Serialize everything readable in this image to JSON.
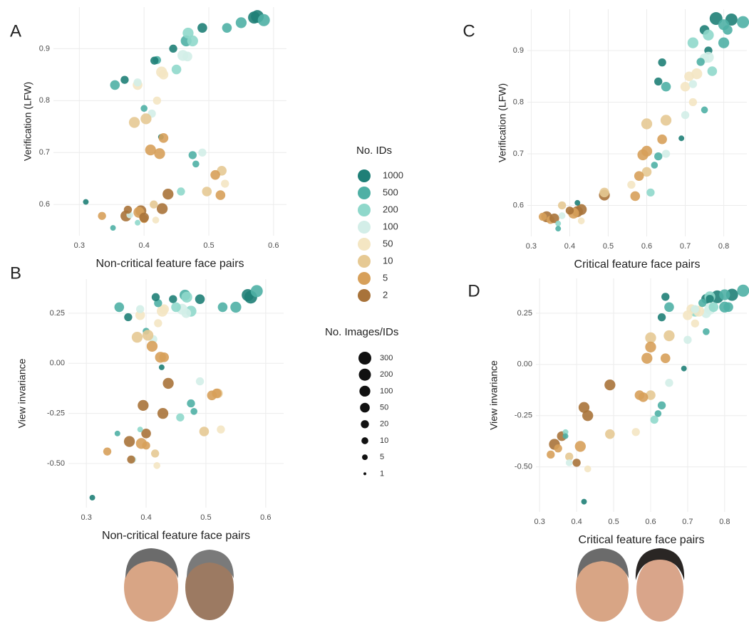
{
  "chart_data": [
    {
      "type": "scatter",
      "label": "A",
      "xlabel": "Non-critical feature face pairs",
      "ylabel": "Verification (LFW)",
      "xlim": [
        0.26,
        0.62
      ],
      "ylim": [
        0.54,
        0.98
      ],
      "xticks": [
        0.3,
        0.4,
        0.5,
        0.6
      ],
      "yticks": [
        0.6,
        0.7,
        0.8,
        0.9
      ],
      "grid": true,
      "x": [
        0.575,
        0.57,
        0.585,
        0.55,
        0.528,
        0.49,
        0.465,
        0.468,
        0.475,
        0.445,
        0.46,
        0.467,
        0.45,
        0.427,
        0.43,
        0.42,
        0.416,
        0.355,
        0.37,
        0.39,
        0.39,
        0.42,
        0.4,
        0.412,
        0.385,
        0.403,
        0.426,
        0.43,
        0.41,
        0.424,
        0.475,
        0.49,
        0.48,
        0.52,
        0.51,
        0.525,
        0.437,
        0.497,
        0.518,
        0.457,
        0.428,
        0.395,
        0.392,
        0.372,
        0.415,
        0.4,
        0.31,
        0.335,
        0.4,
        0.39,
        0.352,
        0.378,
        0.418,
        0.375
      ],
      "values": [
        0.962,
        0.96,
        0.955,
        0.95,
        0.94,
        0.94,
        0.915,
        0.93,
        0.915,
        0.9,
        0.887,
        0.885,
        0.86,
        0.855,
        0.85,
        0.878,
        0.877,
        0.83,
        0.84,
        0.83,
        0.835,
        0.8,
        0.785,
        0.775,
        0.758,
        0.765,
        0.73,
        0.728,
        0.705,
        0.698,
        0.695,
        0.7,
        0.678,
        0.665,
        0.657,
        0.64,
        0.62,
        0.625,
        0.618,
        0.625,
        0.592,
        0.588,
        0.585,
        0.578,
        0.6,
        0.572,
        0.605,
        0.578,
        0.575,
        0.565,
        0.555,
        0.58,
        0.57,
        0.59
      ],
      "sizes": [
        300,
        200,
        200,
        100,
        50,
        50,
        100,
        100,
        100,
        20,
        100,
        50,
        50,
        100,
        50,
        20,
        20,
        50,
        20,
        50,
        20,
        20,
        10,
        20,
        100,
        100,
        5,
        50,
        100,
        100,
        20,
        20,
        10,
        50,
        50,
        20,
        100,
        50,
        50,
        20,
        100,
        100,
        100,
        100,
        20,
        20,
        5,
        20,
        50,
        5,
        5,
        10,
        10,
        20
      ],
      "ids": [
        1000,
        1000,
        500,
        500,
        500,
        1000,
        500,
        200,
        200,
        1000,
        100,
        100,
        200,
        50,
        50,
        500,
        1000,
        500,
        1000,
        50,
        100,
        50,
        500,
        100,
        10,
        10,
        1000,
        5,
        5,
        5,
        500,
        100,
        500,
        10,
        5,
        50,
        2,
        10,
        5,
        200,
        2,
        2,
        5,
        2,
        10,
        5,
        1000,
        5,
        2,
        200,
        500,
        100,
        50,
        2
      ]
    },
    {
      "type": "scatter",
      "label": "B",
      "xlabel": "Non-critical feature face pairs",
      "ylabel": "View invariance",
      "xlim": [
        0.27,
        0.63
      ],
      "ylim": [
        -0.72,
        0.42
      ],
      "xticks": [
        0.3,
        0.4,
        0.5,
        0.6
      ],
      "yticks": [
        0.25,
        {
          "value": 0,
          "label": "0.00"
        },
        -0.25,
        {
          "value": -0.5,
          "label": "-0.50"
        }
      ],
      "grid": true,
      "x": [
        0.575,
        0.57,
        0.585,
        0.55,
        0.528,
        0.49,
        0.465,
        0.468,
        0.475,
        0.445,
        0.46,
        0.467,
        0.45,
        0.427,
        0.43,
        0.42,
        0.416,
        0.355,
        0.37,
        0.39,
        0.39,
        0.42,
        0.4,
        0.412,
        0.385,
        0.403,
        0.426,
        0.43,
        0.41,
        0.424,
        0.475,
        0.49,
        0.48,
        0.52,
        0.51,
        0.525,
        0.437,
        0.497,
        0.518,
        0.457,
        0.428,
        0.395,
        0.392,
        0.372,
        0.415,
        0.4,
        0.31,
        0.335,
        0.4,
        0.39,
        0.352,
        0.378,
        0.418,
        0.375
      ],
      "values": [
        0.33,
        0.34,
        0.36,
        0.28,
        0.28,
        0.32,
        0.34,
        0.33,
        0.26,
        0.32,
        0.27,
        0.25,
        0.28,
        0.26,
        0.27,
        0.3,
        0.33,
        0.28,
        0.23,
        0.24,
        0.27,
        0.2,
        0.16,
        0.12,
        0.13,
        0.14,
        -0.02,
        0.03,
        0.085,
        0.03,
        -0.2,
        -0.09,
        -0.24,
        -0.15,
        -0.16,
        -0.33,
        -0.1,
        -0.34,
        -0.15,
        -0.27,
        -0.25,
        -0.21,
        -0.4,
        -0.39,
        -0.45,
        -0.41,
        -0.67,
        -0.44,
        -0.35,
        -0.33,
        -0.35,
        -0.48,
        -0.51,
        -0.48
      ],
      "sizes": [
        300,
        200,
        200,
        100,
        50,
        50,
        100,
        100,
        100,
        20,
        100,
        50,
        50,
        100,
        50,
        20,
        20,
        50,
        20,
        50,
        20,
        20,
        10,
        20,
        100,
        100,
        5,
        50,
        100,
        100,
        20,
        20,
        10,
        50,
        50,
        20,
        100,
        50,
        50,
        20,
        100,
        100,
        100,
        100,
        20,
        20,
        5,
        20,
        50,
        5,
        5,
        10,
        10,
        20
      ],
      "ids": [
        1000,
        1000,
        500,
        500,
        500,
        1000,
        500,
        200,
        200,
        1000,
        100,
        100,
        200,
        50,
        50,
        500,
        1000,
        500,
        1000,
        50,
        100,
        50,
        500,
        100,
        10,
        10,
        1000,
        5,
        5,
        5,
        500,
        100,
        500,
        10,
        5,
        50,
        2,
        10,
        5,
        200,
        2,
        2,
        5,
        2,
        10,
        5,
        1000,
        5,
        2,
        200,
        500,
        100,
        50,
        2
      ]
    },
    {
      "type": "scatter",
      "label": "C",
      "xlabel": "Critical feature face pairs",
      "ylabel": "Verification (LFW)",
      "xlim": [
        0.29,
        0.86
      ],
      "ylim": [
        0.54,
        0.98
      ],
      "xticks": [
        0.3,
        0.4,
        0.5,
        0.6,
        0.7,
        0.8
      ],
      "yticks": [
        0.6,
        0.7,
        0.8,
        0.9
      ],
      "grid": true,
      "x": [
        0.78,
        0.82,
        0.85,
        0.8,
        0.81,
        0.75,
        0.8,
        0.76,
        0.72,
        0.76,
        0.76,
        0.75,
        0.77,
        0.73,
        0.71,
        0.74,
        0.64,
        0.65,
        0.63,
        0.7,
        0.72,
        0.72,
        0.75,
        0.7,
        0.6,
        0.65,
        0.69,
        0.64,
        0.6,
        0.59,
        0.63,
        0.65,
        0.62,
        0.6,
        0.58,
        0.56,
        0.49,
        0.49,
        0.57,
        0.61,
        0.43,
        0.42,
        0.41,
        0.34,
        0.38,
        0.35,
        0.42,
        0.33,
        0.36,
        0.37,
        0.37,
        0.38,
        0.43,
        0.4
      ],
      "values": [
        0.962,
        0.96,
        0.955,
        0.95,
        0.94,
        0.94,
        0.915,
        0.93,
        0.915,
        0.9,
        0.887,
        0.885,
        0.86,
        0.855,
        0.85,
        0.878,
        0.877,
        0.83,
        0.84,
        0.83,
        0.835,
        0.8,
        0.785,
        0.775,
        0.758,
        0.765,
        0.73,
        0.728,
        0.705,
        0.698,
        0.695,
        0.7,
        0.678,
        0.665,
        0.657,
        0.64,
        0.62,
        0.625,
        0.618,
        0.625,
        0.592,
        0.588,
        0.585,
        0.578,
        0.6,
        0.572,
        0.605,
        0.578,
        0.575,
        0.565,
        0.555,
        0.58,
        0.57,
        0.59
      ],
      "sizes": [
        300,
        200,
        200,
        100,
        50,
        50,
        100,
        100,
        100,
        20,
        100,
        50,
        50,
        100,
        50,
        20,
        20,
        50,
        20,
        50,
        20,
        20,
        10,
        20,
        100,
        100,
        5,
        50,
        100,
        100,
        20,
        20,
        10,
        50,
        50,
        20,
        100,
        50,
        50,
        20,
        100,
        100,
        100,
        100,
        20,
        20,
        5,
        20,
        50,
        5,
        5,
        10,
        10,
        20
      ],
      "ids": [
        1000,
        1000,
        500,
        500,
        500,
        1000,
        500,
        200,
        200,
        1000,
        100,
        100,
        200,
        50,
        50,
        500,
        1000,
        500,
        1000,
        50,
        100,
        50,
        500,
        100,
        10,
        10,
        1000,
        5,
        5,
        5,
        500,
        100,
        500,
        10,
        5,
        50,
        2,
        10,
        5,
        200,
        2,
        2,
        5,
        2,
        10,
        5,
        1000,
        5,
        2,
        200,
        500,
        100,
        50,
        2
      ]
    },
    {
      "type": "scatter",
      "label": "D",
      "xlabel": "Critical feature face pairs",
      "ylabel": "View invariance",
      "xlim": [
        0.29,
        0.86
      ],
      "ylim": [
        -0.72,
        0.42
      ],
      "xticks": [
        0.3,
        0.4,
        0.5,
        0.6,
        0.7,
        0.8
      ],
      "yticks": [
        0.25,
        {
          "value": 0,
          "label": "0.00"
        },
        -0.25,
        {
          "value": -0.5,
          "label": "-0.50"
        }
      ],
      "grid": true,
      "x": [
        0.78,
        0.82,
        0.85,
        0.8,
        0.81,
        0.75,
        0.8,
        0.76,
        0.72,
        0.76,
        0.76,
        0.75,
        0.77,
        0.73,
        0.71,
        0.74,
        0.64,
        0.65,
        0.63,
        0.7,
        0.72,
        0.72,
        0.75,
        0.7,
        0.6,
        0.65,
        0.69,
        0.64,
        0.6,
        0.59,
        0.63,
        0.65,
        0.62,
        0.6,
        0.58,
        0.56,
        0.49,
        0.49,
        0.57,
        0.61,
        0.43,
        0.42,
        0.41,
        0.34,
        0.38,
        0.35,
        0.42,
        0.33,
        0.36,
        0.37,
        0.37,
        0.38,
        0.43,
        0.4
      ],
      "values": [
        0.33,
        0.34,
        0.36,
        0.28,
        0.28,
        0.32,
        0.34,
        0.33,
        0.26,
        0.32,
        0.27,
        0.25,
        0.28,
        0.26,
        0.27,
        0.3,
        0.33,
        0.28,
        0.23,
        0.24,
        0.27,
        0.2,
        0.16,
        0.12,
        0.13,
        0.14,
        -0.02,
        0.03,
        0.085,
        0.03,
        -0.2,
        -0.09,
        -0.24,
        -0.15,
        -0.16,
        -0.33,
        -0.1,
        -0.34,
        -0.15,
        -0.27,
        -0.25,
        -0.21,
        -0.4,
        -0.39,
        -0.45,
        -0.41,
        -0.67,
        -0.44,
        -0.35,
        -0.33,
        -0.35,
        -0.48,
        -0.51,
        -0.48
      ],
      "sizes": [
        300,
        200,
        200,
        100,
        50,
        50,
        100,
        100,
        100,
        20,
        100,
        50,
        50,
        100,
        50,
        20,
        20,
        50,
        20,
        50,
        20,
        20,
        10,
        20,
        100,
        100,
        5,
        50,
        100,
        100,
        20,
        20,
        10,
        50,
        50,
        20,
        100,
        50,
        50,
        20,
        100,
        100,
        100,
        100,
        20,
        20,
        5,
        20,
        50,
        5,
        5,
        10,
        10,
        20
      ],
      "ids": [
        1000,
        1000,
        500,
        500,
        500,
        1000,
        500,
        200,
        200,
        1000,
        100,
        100,
        200,
        50,
        50,
        500,
        1000,
        500,
        1000,
        50,
        100,
        50,
        500,
        100,
        10,
        10,
        1000,
        5,
        5,
        5,
        500,
        100,
        500,
        10,
        5,
        50,
        2,
        10,
        5,
        200,
        2,
        2,
        5,
        2,
        10,
        5,
        1000,
        5,
        2,
        200,
        500,
        100,
        50,
        2
      ]
    }
  ],
  "legend": {
    "title": "No. IDs",
    "entries": [
      {
        "value": 1000,
        "color": "#1f7f77"
      },
      {
        "value": 500,
        "color": "#4fb0a5"
      },
      {
        "value": 200,
        "color": "#8fd8cb"
      },
      {
        "value": 100,
        "color": "#d3eee8"
      },
      {
        "value": 50,
        "color": "#f4e6c3"
      },
      {
        "value": 10,
        "color": "#e6c993"
      },
      {
        "value": 5,
        "color": "#d7a05a"
      },
      {
        "value": 2,
        "color": "#a8733a"
      }
    ]
  },
  "size_legend": {
    "title": "No. Images/IDs",
    "values": [
      300,
      200,
      100,
      50,
      20,
      10,
      5,
      1
    ]
  }
}
